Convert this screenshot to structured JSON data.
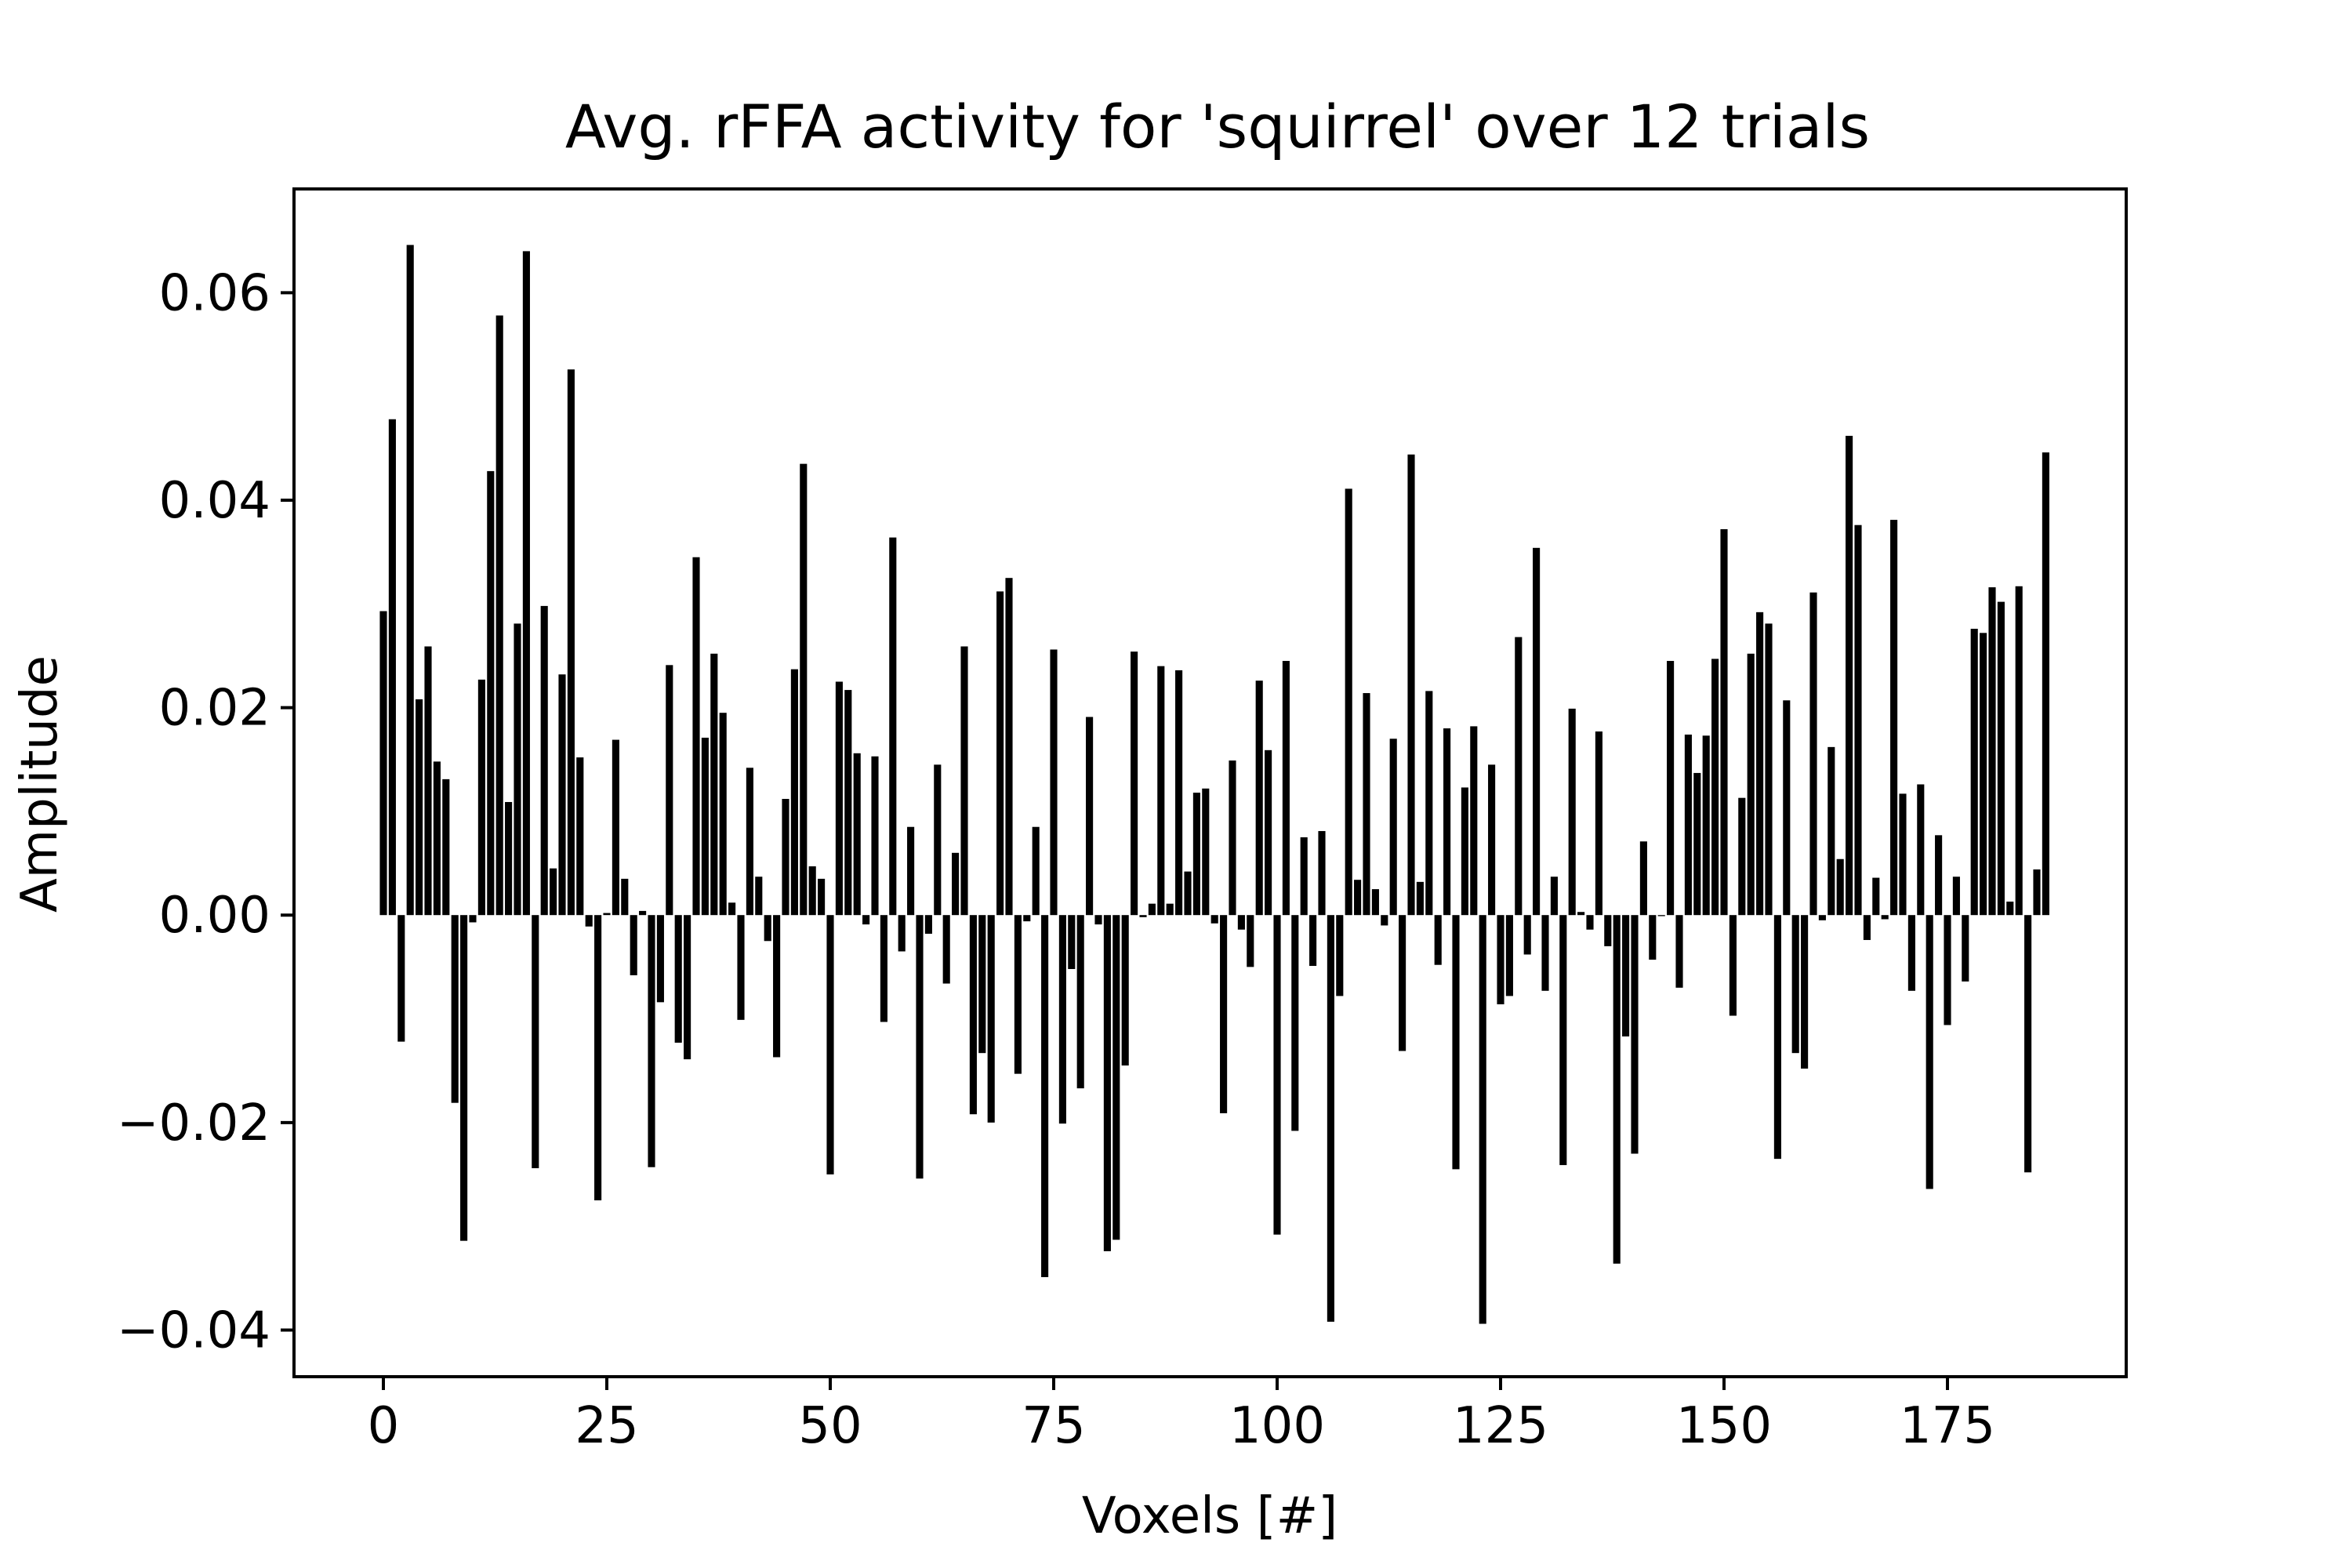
{
  "chart_data": {
    "type": "bar",
    "title": "Avg. rFFA activity for 'squirrel' over 12 trials",
    "xlabel": "Voxels [#]",
    "ylabel": "Amplitude",
    "xlim": [
      -10,
      195
    ],
    "ylim": [
      -0.0445,
      0.07
    ],
    "xticks": [
      0,
      25,
      50,
      75,
      100,
      125,
      150,
      175
    ],
    "xtick_labels": [
      "0",
      "25",
      "50",
      "75",
      "100",
      "125",
      "150",
      "175"
    ],
    "yticks": [
      -0.04,
      -0.02,
      0.0,
      0.02,
      0.04,
      0.06
    ],
    "ytick_labels": [
      "−0.04",
      "−0.02",
      "0.00",
      "0.02",
      "0.04",
      "0.06"
    ],
    "grid": false,
    "bar_color": "#000000",
    "x": [
      0,
      1,
      2,
      3,
      4,
      5,
      6,
      7,
      8,
      9,
      10,
      11,
      12,
      13,
      14,
      15,
      16,
      17,
      18,
      19,
      20,
      21,
      22,
      23,
      24,
      25,
      26,
      27,
      28,
      29,
      30,
      31,
      32,
      33,
      34,
      35,
      36,
      37,
      38,
      39,
      40,
      41,
      42,
      43,
      44,
      45,
      46,
      47,
      48,
      49,
      50,
      51,
      52,
      53,
      54,
      55,
      56,
      57,
      58,
      59,
      60,
      61,
      62,
      63,
      64,
      65,
      66,
      67,
      68,
      69,
      70,
      71,
      72,
      73,
      74,
      75,
      76,
      77,
      78,
      79,
      80,
      81,
      82,
      83,
      84,
      85,
      86,
      87,
      88,
      89,
      90,
      91,
      92,
      93,
      94,
      95,
      96,
      97,
      98,
      99,
      100,
      101,
      102,
      103,
      104,
      105,
      106,
      107,
      108,
      109,
      110,
      111,
      112,
      113,
      114,
      115,
      116,
      117,
      118,
      119,
      120,
      121,
      122,
      123,
      124,
      125,
      126,
      127,
      128,
      129,
      130,
      131,
      132,
      133,
      134,
      135,
      136,
      137,
      138,
      139,
      140,
      141,
      142,
      143,
      144,
      145,
      146,
      147,
      148,
      149,
      150,
      151,
      152,
      153,
      154,
      155,
      156,
      157,
      158,
      159,
      160,
      161,
      162,
      163,
      164,
      165,
      166,
      167,
      168,
      169,
      170,
      171,
      172,
      173,
      174,
      175,
      176,
      177,
      178,
      179,
      180,
      181,
      182,
      183,
      184,
      185,
      186
    ],
    "values": [
      0.0293,
      0.0478,
      -0.0122,
      0.0646,
      0.0208,
      0.0259,
      0.0148,
      0.0131,
      -0.0181,
      -0.0314,
      -0.0007,
      0.0227,
      0.0428,
      0.0578,
      0.0109,
      0.0281,
      0.064,
      -0.0244,
      0.0298,
      0.0045,
      0.0232,
      0.0526,
      0.0152,
      -0.0011,
      -0.0275,
      0.0002,
      0.0169,
      0.0035,
      -0.0058,
      0.0004,
      -0.0243,
      -0.0084,
      0.0241,
      -0.0123,
      -0.0139,
      0.0345,
      0.0171,
      0.0252,
      0.0195,
      0.0012,
      -0.0101,
      0.0142,
      0.0037,
      -0.0025,
      -0.0137,
      0.0112,
      0.0237,
      0.0435,
      0.0047,
      0.0035,
      -0.025,
      0.0225,
      0.0217,
      0.0156,
      -0.0009,
      0.0153,
      -0.0103,
      0.0364,
      -0.0035,
      0.0085,
      -0.0254,
      -0.0018,
      0.0145,
      -0.0066,
      0.006,
      0.0259,
      -0.0192,
      -0.0133,
      -0.02,
      0.0312,
      0.0325,
      -0.0153,
      -0.0006,
      0.0085,
      -0.0349,
      0.0256,
      -0.0201,
      -0.0052,
      -0.0167,
      0.0191,
      -0.0009,
      -0.0324,
      -0.0313,
      -0.0145,
      0.0254,
      -0.0002,
      0.0011,
      0.024,
      0.0011,
      0.0236,
      0.0042,
      0.0118,
      0.0122,
      -0.0008,
      -0.0191,
      0.0149,
      -0.0014,
      -0.005,
      0.0226,
      0.0159,
      -0.0308,
      0.0245,
      -0.0208,
      0.0075,
      -0.0049,
      0.0081,
      -0.0392,
      -0.0078,
      0.0411,
      0.0034,
      0.0214,
      0.0025,
      -0.001,
      0.017,
      -0.0131,
      0.0444,
      0.0032,
      0.0216,
      -0.0048,
      0.018,
      -0.0245,
      0.0123,
      0.0182,
      -0.0394,
      0.0145,
      -0.0086,
      -0.0078,
      0.0268,
      -0.0038,
      0.0354,
      -0.0073,
      0.0037,
      -0.0241,
      0.0199,
      0.0003,
      -0.0014,
      0.0177,
      -0.003,
      -0.0336,
      -0.0117,
      -0.023,
      0.0071,
      -0.0043,
      -0.0001,
      0.0245,
      -0.007,
      0.0174,
      0.0137,
      0.0173,
      0.0247,
      0.0372,
      -0.0097,
      0.0113,
      0.0252,
      0.0292,
      0.0281,
      -0.0235,
      0.0207,
      -0.0133,
      -0.0148,
      0.0311,
      -0.0005,
      0.0162,
      0.0054,
      0.0462,
      0.0376,
      -0.0024,
      0.0036,
      -0.0004,
      0.0381,
      0.0117,
      -0.0073,
      0.0126,
      -0.0264,
      0.0077,
      -0.0106,
      0.0037,
      -0.0064,
      0.0276,
      0.0272,
      0.0316,
      0.0302,
      0.0013,
      0.0317,
      -0.0248,
      0.0044,
      0.0446
    ]
  }
}
